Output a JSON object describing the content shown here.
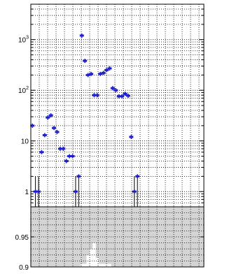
{
  "chart_data": [
    {
      "panel": "top",
      "type": "scatter",
      "yscale": "log",
      "ylim": [
        0.5,
        5000
      ],
      "xlim": [
        0.5,
        56.5
      ],
      "grid": true,
      "ytick_labels": [
        {
          "value": 1,
          "base": "1",
          "exp": ""
        },
        {
          "value": 10,
          "base": "10",
          "exp": ""
        },
        {
          "value": 100,
          "base": "10",
          "exp": "2"
        },
        {
          "value": 1000,
          "base": "10",
          "exp": "3"
        }
      ],
      "marker_color": "#1f1fcc",
      "series": [
        {
          "x": [
            1,
            2,
            3,
            4,
            5,
            6,
            7,
            8,
            9,
            10,
            11,
            12,
            13,
            14,
            15,
            16,
            17,
            18,
            19,
            20,
            21,
            22,
            23,
            24,
            25,
            26,
            27,
            28,
            29,
            30,
            31,
            32,
            33,
            34,
            35,
            36,
            37,
            38,
            39,
            40,
            41,
            42,
            43,
            44,
            45,
            46,
            47,
            48,
            49,
            50,
            51,
            52,
            53,
            54,
            55,
            56
          ],
          "y": [
            20,
            1,
            1,
            6,
            13,
            29,
            32,
            18,
            15,
            7,
            7,
            4,
            5,
            5,
            1,
            2,
            1200,
            380,
            200,
            210,
            80,
            80,
            210,
            220,
            250,
            270,
            110,
            100,
            76,
            76,
            85,
            78,
            12,
            1,
            2,
            null,
            null,
            null,
            null,
            null,
            null,
            null,
            null,
            null,
            null,
            null,
            null,
            null,
            null,
            null,
            null,
            null,
            null,
            null,
            null,
            null
          ],
          "err_low": [
            null,
            0.5,
            0.5,
            null,
            null,
            null,
            null,
            null,
            null,
            null,
            null,
            null,
            null,
            null,
            0.5,
            0.5,
            null,
            null,
            null,
            null,
            null,
            null,
            null,
            null,
            null,
            null,
            null,
            null,
            null,
            null,
            null,
            null,
            null,
            0.5,
            0.5,
            null,
            null,
            null,
            null,
            null,
            null,
            null,
            null,
            null,
            null,
            null,
            null,
            null,
            null,
            null,
            null,
            null,
            null,
            null,
            null,
            null
          ],
          "err_high": [
            null,
            2,
            2,
            null,
            null,
            null,
            null,
            null,
            null,
            null,
            null,
            null,
            null,
            null,
            2,
            2,
            null,
            null,
            null,
            null,
            null,
            null,
            null,
            null,
            null,
            null,
            null,
            null,
            null,
            null,
            null,
            null,
            null,
            2,
            2,
            null,
            null,
            null,
            null,
            null,
            null,
            null,
            null,
            null,
            null,
            null,
            null,
            null,
            null,
            null,
            null,
            null,
            null,
            null,
            null,
            null
          ]
        }
      ]
    },
    {
      "panel": "bottom",
      "type": "bar",
      "ylim": [
        0.9,
        1.0
      ],
      "yticks": [
        0.9,
        0.95
      ],
      "ytick_labels": [
        "0.9",
        "0.95"
      ],
      "xlim": [
        0.5,
        56.5
      ],
      "grid": true,
      "fill_color": "#d4d4d4",
      "gap_x": [
        17,
        18,
        19,
        20,
        21,
        22,
        23,
        24,
        25,
        26
      ],
      "gap_bottom": [
        0.905,
        0.905,
        0.92,
        0.93,
        0.94,
        0.915,
        0.905,
        0.905,
        0.905,
        0.905
      ]
    }
  ]
}
